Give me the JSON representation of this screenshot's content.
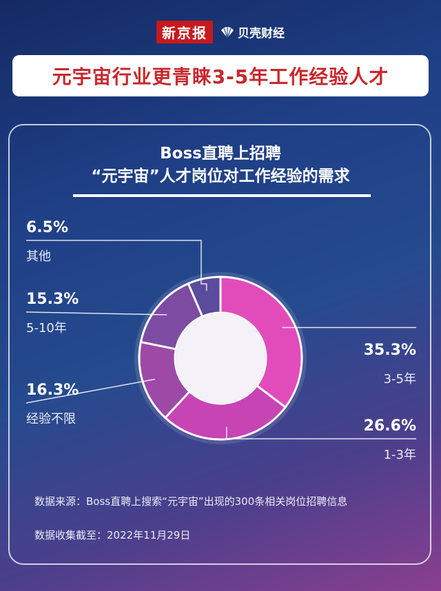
{
  "brand": {
    "xinjingbao": "新京报",
    "beike": "贝壳财经"
  },
  "headline": "元宇宙行业更青睐3-5年工作经验人才",
  "chart_data": {
    "type": "pie",
    "title": "Boss直聘上招聘",
    "subtitle": "“元宇宙”人才岗位对工作经验的需求",
    "slices": [
      {
        "label": "3-5年",
        "value": 35.3,
        "display": "35.3%",
        "color": "#e24cba"
      },
      {
        "label": "1-3年",
        "value": 26.6,
        "display": "26.6%",
        "color": "#c744b5"
      },
      {
        "label": "经验不限",
        "value": 16.3,
        "display": "16.3%",
        "color": "#9d4aa7"
      },
      {
        "label": "5-10年",
        "value": 15.3,
        "display": "15.3%",
        "color": "#7e4ba3"
      },
      {
        "label": "其他",
        "value": 6.5,
        "display": "6.5%",
        "color": "#5a4c9b"
      }
    ]
  },
  "footer": {
    "source": "数据来源：Boss直聘上搜索“元宇宙”出现的300条相关岗位招聘信息",
    "date": "数据收集截至：2022年11月29日"
  }
}
